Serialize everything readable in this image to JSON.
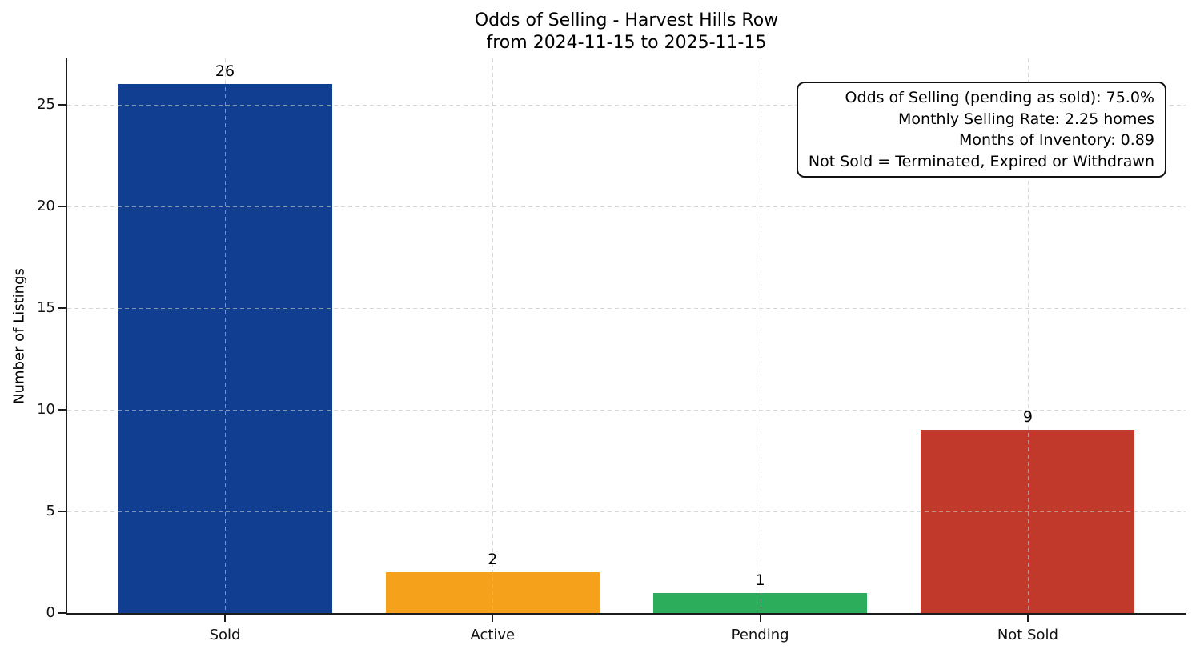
{
  "title": {
    "line1": "Odds of Selling - Harvest Hills Row",
    "line2": "from 2024-11-15 to 2025-11-15"
  },
  "ylabel": "Number of Listings",
  "annotation": {
    "lines": [
      "Odds of Selling (pending as sold): 75.0%",
      "Monthly Selling Rate: 2.25 homes",
      "Months of Inventory: 0.89",
      "Not Sold = Terminated, Expired or Withdrawn"
    ]
  },
  "chart_data": {
    "type": "bar",
    "title": "Odds of Selling - Harvest Hills Row\nfrom 2024-11-15 to 2025-11-15",
    "categories": [
      "Sold",
      "Active",
      "Pending",
      "Not Sold"
    ],
    "values": [
      26,
      2,
      1,
      9
    ],
    "bar_labels": [
      "26",
      "2",
      "1",
      "9"
    ],
    "bar_colors": [
      "#113e90",
      "#f5a11c",
      "#2bad5c",
      "#c0392b"
    ],
    "xlabel": "",
    "ylabel": "Number of Listings",
    "ylim": [
      0,
      27.27
    ],
    "yticks": [
      0,
      5,
      10,
      15,
      20,
      25
    ],
    "grid": "dashed, both axes, drawn over bars",
    "grid_color": "#c2c2c2",
    "legend_position": "none",
    "stats": {
      "odds_of_selling_pct": 75.0,
      "monthly_selling_rate_homes": 2.25,
      "months_of_inventory": 0.89
    }
  }
}
